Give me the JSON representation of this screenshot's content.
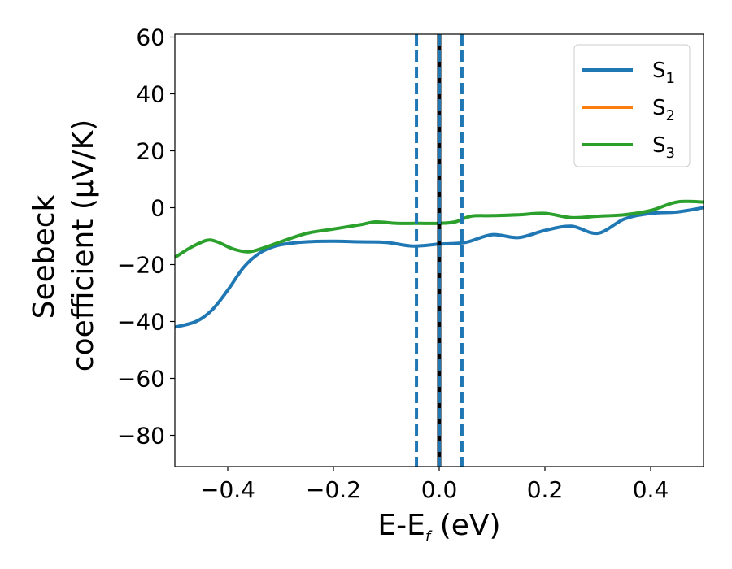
{
  "chart_data": {
    "type": "line",
    "title": "",
    "xlabel": {
      "main": "E-E",
      "sub": "f",
      "unit": " (eV)"
    },
    "ylabel": {
      "line1": "Seebeck",
      "line2": "coefficient  (μV/K)"
    },
    "xlim": [
      -0.5,
      0.5
    ],
    "ylim": [
      -91,
      61
    ],
    "xticks": [
      -0.4,
      -0.2,
      0.0,
      0.2,
      0.4
    ],
    "xtick_labels": [
      "−0.4",
      "−0.2",
      "0.0",
      "0.2",
      "0.4"
    ],
    "yticks": [
      -80,
      -60,
      -40,
      -20,
      0,
      20,
      40,
      60
    ],
    "ytick_labels": [
      "−80",
      "−60",
      "−40",
      "−20",
      "0",
      "20",
      "40",
      "60"
    ],
    "grid": false,
    "legend_placement": "top-right",
    "vlines": [
      {
        "x": 0.0,
        "style": "solid",
        "color": "#000000"
      },
      {
        "x": -0.043,
        "style": "dashed",
        "color": "#1f77b4"
      },
      {
        "x": 0.0,
        "style": "dashed",
        "color": "#1f77b4"
      },
      {
        "x": 0.043,
        "style": "dashed",
        "color": "#1f77b4"
      }
    ],
    "series": [
      {
        "name": {
          "main": "S",
          "sub": "1"
        },
        "color": "#1f77b4",
        "x": [
          -0.5,
          -0.46,
          -0.43,
          -0.4,
          -0.37,
          -0.34,
          -0.31,
          -0.28,
          -0.25,
          -0.2,
          -0.15,
          -0.1,
          -0.05,
          0.0,
          0.05,
          0.1,
          0.15,
          0.2,
          0.25,
          0.3,
          0.35,
          0.4,
          0.45,
          0.5
        ],
        "values": [
          -42,
          -40,
          -36,
          -29,
          -21,
          -16,
          -13.5,
          -12.5,
          -12,
          -11.8,
          -12,
          -12.2,
          -13.5,
          -12.8,
          -12.2,
          -9.5,
          -10.5,
          -8,
          -6.5,
          -9,
          -4,
          -2,
          -1.5,
          0
        ]
      },
      {
        "name": {
          "main": "S",
          "sub": "2"
        },
        "color": "#ff7f0e",
        "x": [],
        "values": []
      },
      {
        "name": {
          "main": "S",
          "sub": "3"
        },
        "color": "#2ca02c",
        "x": [
          -0.5,
          -0.47,
          -0.44,
          -0.42,
          -0.39,
          -0.36,
          -0.33,
          -0.3,
          -0.25,
          -0.2,
          -0.15,
          -0.12,
          -0.08,
          -0.04,
          0.0,
          0.03,
          0.06,
          0.1,
          0.15,
          0.2,
          0.25,
          0.3,
          0.35,
          0.4,
          0.45,
          0.5
        ],
        "values": [
          -17.5,
          -14,
          -11.5,
          -12,
          -14.5,
          -15.5,
          -14,
          -12,
          -9,
          -7.5,
          -6,
          -5,
          -5.5,
          -5.5,
          -5.5,
          -5,
          -3,
          -2.8,
          -2.5,
          -2,
          -3.5,
          -3,
          -2.5,
          -1,
          2,
          2
        ]
      }
    ]
  }
}
